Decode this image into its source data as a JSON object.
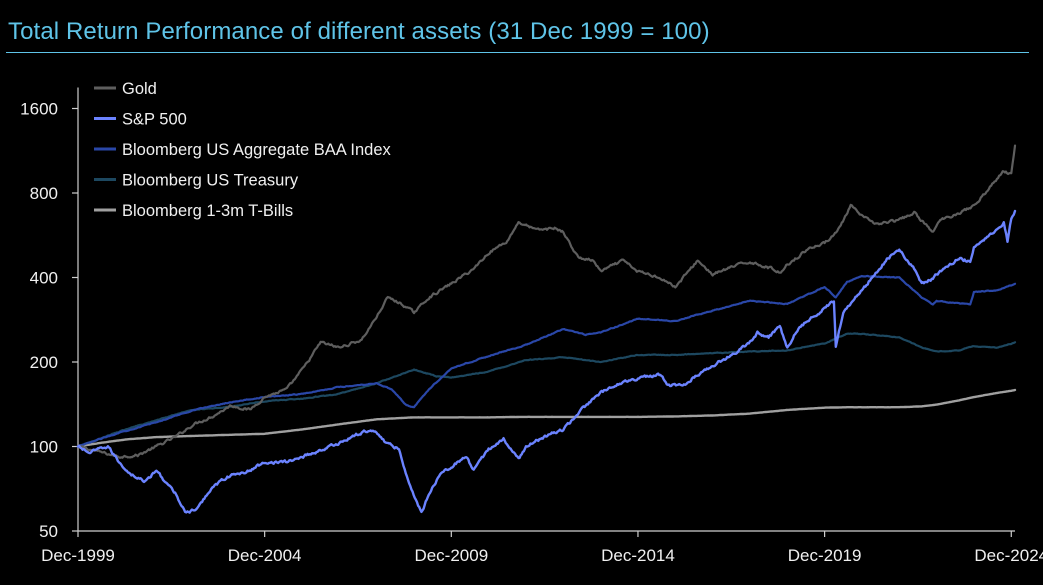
{
  "chart_data": {
    "type": "line",
    "title": "Total Return Performance of different assets (31 Dec 1999 = 100)",
    "yscale": "log",
    "ylim": [
      50,
      1900
    ],
    "yticks": [
      50,
      100,
      200,
      400,
      800,
      1600
    ],
    "ytick_labels": [
      "50",
      "100",
      "200",
      "400",
      "800",
      "1600"
    ],
    "xlim": [
      1999.9,
      2025.0
    ],
    "xticks": [
      1999.9,
      2004.9,
      2009.9,
      2014.9,
      2019.9,
      2024.9
    ],
    "xtick_labels": [
      "Dec-1999",
      "Dec-2004",
      "Dec-2009",
      "Dec-2014",
      "Dec-2019",
      "Dec-2024"
    ],
    "legend_position": "top-left",
    "series": [
      {
        "name": "Gold",
        "color": "#5e5e5e",
        "width": 2.2,
        "points": [
          [
            1999.9,
            100
          ],
          [
            2000.3,
            97
          ],
          [
            2001.0,
            92
          ],
          [
            2001.5,
            93
          ],
          [
            2002.0,
            100
          ],
          [
            2002.5,
            108
          ],
          [
            2003.0,
            120
          ],
          [
            2003.5,
            128
          ],
          [
            2004.0,
            140
          ],
          [
            2004.5,
            135
          ],
          [
            2004.9,
            150
          ],
          [
            2005.5,
            160
          ],
          [
            2006.0,
            195
          ],
          [
            2006.4,
            235
          ],
          [
            2006.9,
            225
          ],
          [
            2007.5,
            240
          ],
          [
            2007.9,
            290
          ],
          [
            2008.2,
            340
          ],
          [
            2008.6,
            320
          ],
          [
            2008.9,
            300
          ],
          [
            2009.3,
            340
          ],
          [
            2009.9,
            380
          ],
          [
            2010.5,
            430
          ],
          [
            2010.9,
            490
          ],
          [
            2011.4,
            540
          ],
          [
            2011.7,
            630
          ],
          [
            2012.2,
            590
          ],
          [
            2012.7,
            600
          ],
          [
            2012.9,
            580
          ],
          [
            2013.3,
            470
          ],
          [
            2013.7,
            460
          ],
          [
            2013.9,
            420
          ],
          [
            2014.5,
            460
          ],
          [
            2014.9,
            420
          ],
          [
            2015.5,
            400
          ],
          [
            2015.9,
            370
          ],
          [
            2016.5,
            460
          ],
          [
            2016.9,
            410
          ],
          [
            2017.5,
            440
          ],
          [
            2017.9,
            455
          ],
          [
            2018.5,
            430
          ],
          [
            2018.7,
            415
          ],
          [
            2018.9,
            445
          ],
          [
            2019.5,
            510
          ],
          [
            2019.9,
            530
          ],
          [
            2020.3,
            600
          ],
          [
            2020.6,
            720
          ],
          [
            2020.9,
            660
          ],
          [
            2021.3,
            620
          ],
          [
            2021.9,
            640
          ],
          [
            2022.3,
            680
          ],
          [
            2022.8,
            580
          ],
          [
            2023.0,
            640
          ],
          [
            2023.5,
            680
          ],
          [
            2023.9,
            720
          ],
          [
            2024.3,
            830
          ],
          [
            2024.7,
            960
          ],
          [
            2024.9,
            930
          ],
          [
            2025.0,
            1180
          ]
        ]
      },
      {
        "name": "S&P 500",
        "color": "#6b83ff",
        "width": 2.4,
        "points": [
          [
            1999.9,
            100
          ],
          [
            2000.2,
            95
          ],
          [
            2000.7,
            100
          ],
          [
            2001.0,
            88
          ],
          [
            2001.3,
            80
          ],
          [
            2001.7,
            75
          ],
          [
            2002.0,
            82
          ],
          [
            2002.5,
            68
          ],
          [
            2002.8,
            58
          ],
          [
            2003.1,
            60
          ],
          [
            2003.5,
            72
          ],
          [
            2003.9,
            78
          ],
          [
            2004.5,
            82
          ],
          [
            2004.9,
            88
          ],
          [
            2005.5,
            88
          ],
          [
            2005.9,
            92
          ],
          [
            2006.5,
            98
          ],
          [
            2006.9,
            103
          ],
          [
            2007.5,
            112
          ],
          [
            2007.8,
            115
          ],
          [
            2008.2,
            102
          ],
          [
            2008.5,
            98
          ],
          [
            2008.8,
            72
          ],
          [
            2009.1,
            58
          ],
          [
            2009.3,
            68
          ],
          [
            2009.6,
            80
          ],
          [
            2009.9,
            85
          ],
          [
            2010.3,
            92
          ],
          [
            2010.5,
            82
          ],
          [
            2010.9,
            98
          ],
          [
            2011.3,
            106
          ],
          [
            2011.7,
            90
          ],
          [
            2011.9,
            100
          ],
          [
            2012.5,
            110
          ],
          [
            2012.9,
            115
          ],
          [
            2013.5,
            140
          ],
          [
            2013.9,
            155
          ],
          [
            2014.5,
            170
          ],
          [
            2014.9,
            175
          ],
          [
            2015.5,
            180
          ],
          [
            2015.7,
            165
          ],
          [
            2016.1,
            165
          ],
          [
            2016.5,
            180
          ],
          [
            2016.9,
            195
          ],
          [
            2017.5,
            215
          ],
          [
            2017.9,
            235
          ],
          [
            2018.1,
            255
          ],
          [
            2018.4,
            245
          ],
          [
            2018.7,
            270
          ],
          [
            2018.9,
            225
          ],
          [
            2019.2,
            265
          ],
          [
            2019.6,
            290
          ],
          [
            2019.9,
            310
          ],
          [
            2020.15,
            330
          ],
          [
            2020.2,
            230
          ],
          [
            2020.4,
            300
          ],
          [
            2020.7,
            340
          ],
          [
            2020.9,
            360
          ],
          [
            2021.3,
            420
          ],
          [
            2021.6,
            470
          ],
          [
            2021.9,
            500
          ],
          [
            2022.3,
            430
          ],
          [
            2022.5,
            380
          ],
          [
            2022.8,
            395
          ],
          [
            2022.9,
            410
          ],
          [
            2023.5,
            470
          ],
          [
            2023.8,
            455
          ],
          [
            2023.9,
            510
          ],
          [
            2024.4,
            580
          ],
          [
            2024.7,
            630
          ],
          [
            2024.8,
            540
          ],
          [
            2024.9,
            650
          ],
          [
            2025.0,
            690
          ]
        ]
      },
      {
        "name": "Bloomberg US Aggregate BAA Index",
        "color": "#2a47a8",
        "width": 2.2,
        "points": [
          [
            1999.9,
            100
          ],
          [
            2001.0,
            112
          ],
          [
            2002.0,
            122
          ],
          [
            2003.0,
            135
          ],
          [
            2004.0,
            144
          ],
          [
            2004.9,
            150
          ],
          [
            2005.9,
            154
          ],
          [
            2006.9,
            163
          ],
          [
            2007.9,
            168
          ],
          [
            2008.3,
            160
          ],
          [
            2008.7,
            140
          ],
          [
            2008.9,
            138
          ],
          [
            2009.3,
            160
          ],
          [
            2009.9,
            190
          ],
          [
            2010.9,
            210
          ],
          [
            2011.9,
            230
          ],
          [
            2012.9,
            262
          ],
          [
            2013.5,
            250
          ],
          [
            2013.9,
            255
          ],
          [
            2014.9,
            285
          ],
          [
            2015.9,
            280
          ],
          [
            2016.9,
            305
          ],
          [
            2017.9,
            330
          ],
          [
            2018.9,
            322
          ],
          [
            2019.9,
            370
          ],
          [
            2020.2,
            340
          ],
          [
            2020.5,
            385
          ],
          [
            2020.9,
            405
          ],
          [
            2021.9,
            400
          ],
          [
            2022.5,
            340
          ],
          [
            2022.8,
            320
          ],
          [
            2022.9,
            330
          ],
          [
            2023.8,
            320
          ],
          [
            2023.9,
            355
          ],
          [
            2024.5,
            360
          ],
          [
            2024.9,
            375
          ],
          [
            2025.0,
            380
          ]
        ]
      },
      {
        "name": "Bloomberg US Treasury",
        "color": "#1d4860",
        "width": 2.2,
        "points": [
          [
            1999.9,
            100
          ],
          [
            2001.0,
            113
          ],
          [
            2002.0,
            124
          ],
          [
            2002.9,
            135
          ],
          [
            2003.9,
            138
          ],
          [
            2004.9,
            145
          ],
          [
            2005.9,
            148
          ],
          [
            2006.9,
            154
          ],
          [
            2007.9,
            168
          ],
          [
            2008.9,
            188
          ],
          [
            2009.5,
            178
          ],
          [
            2009.9,
            176
          ],
          [
            2010.9,
            185
          ],
          [
            2011.9,
            203
          ],
          [
            2012.9,
            208
          ],
          [
            2013.9,
            200
          ],
          [
            2014.9,
            212
          ],
          [
            2015.9,
            212
          ],
          [
            2016.9,
            215
          ],
          [
            2017.9,
            218
          ],
          [
            2018.9,
            220
          ],
          [
            2019.9,
            233
          ],
          [
            2020.5,
            252
          ],
          [
            2020.9,
            252
          ],
          [
            2021.9,
            245
          ],
          [
            2022.5,
            225
          ],
          [
            2022.9,
            218
          ],
          [
            2023.5,
            220
          ],
          [
            2023.9,
            228
          ],
          [
            2024.5,
            225
          ],
          [
            2024.9,
            232
          ],
          [
            2025.0,
            235
          ]
        ]
      },
      {
        "name": "Bloomberg 1-3m T-Bills",
        "color": "#a0a0a0",
        "width": 2.4,
        "points": [
          [
            1999.9,
            100
          ],
          [
            2000.5,
            103
          ],
          [
            2001.2,
            106
          ],
          [
            2002.0,
            108
          ],
          [
            2002.9,
            109
          ],
          [
            2003.9,
            110
          ],
          [
            2004.9,
            111
          ],
          [
            2005.9,
            115
          ],
          [
            2006.9,
            120
          ],
          [
            2007.9,
            125
          ],
          [
            2008.9,
            127
          ],
          [
            2009.9,
            127
          ],
          [
            2010.9,
            127
          ],
          [
            2011.9,
            127.5
          ],
          [
            2012.9,
            127.5
          ],
          [
            2013.9,
            127.5
          ],
          [
            2014.9,
            127.5
          ],
          [
            2015.9,
            128
          ],
          [
            2016.9,
            129
          ],
          [
            2017.9,
            131
          ],
          [
            2018.9,
            135
          ],
          [
            2019.9,
            137.5
          ],
          [
            2020.5,
            138
          ],
          [
            2020.9,
            138
          ],
          [
            2021.9,
            138
          ],
          [
            2022.5,
            139
          ],
          [
            2022.9,
            141
          ],
          [
            2023.5,
            146
          ],
          [
            2023.9,
            150
          ],
          [
            2024.5,
            155
          ],
          [
            2024.9,
            158
          ],
          [
            2025.0,
            159
          ]
        ]
      }
    ]
  }
}
